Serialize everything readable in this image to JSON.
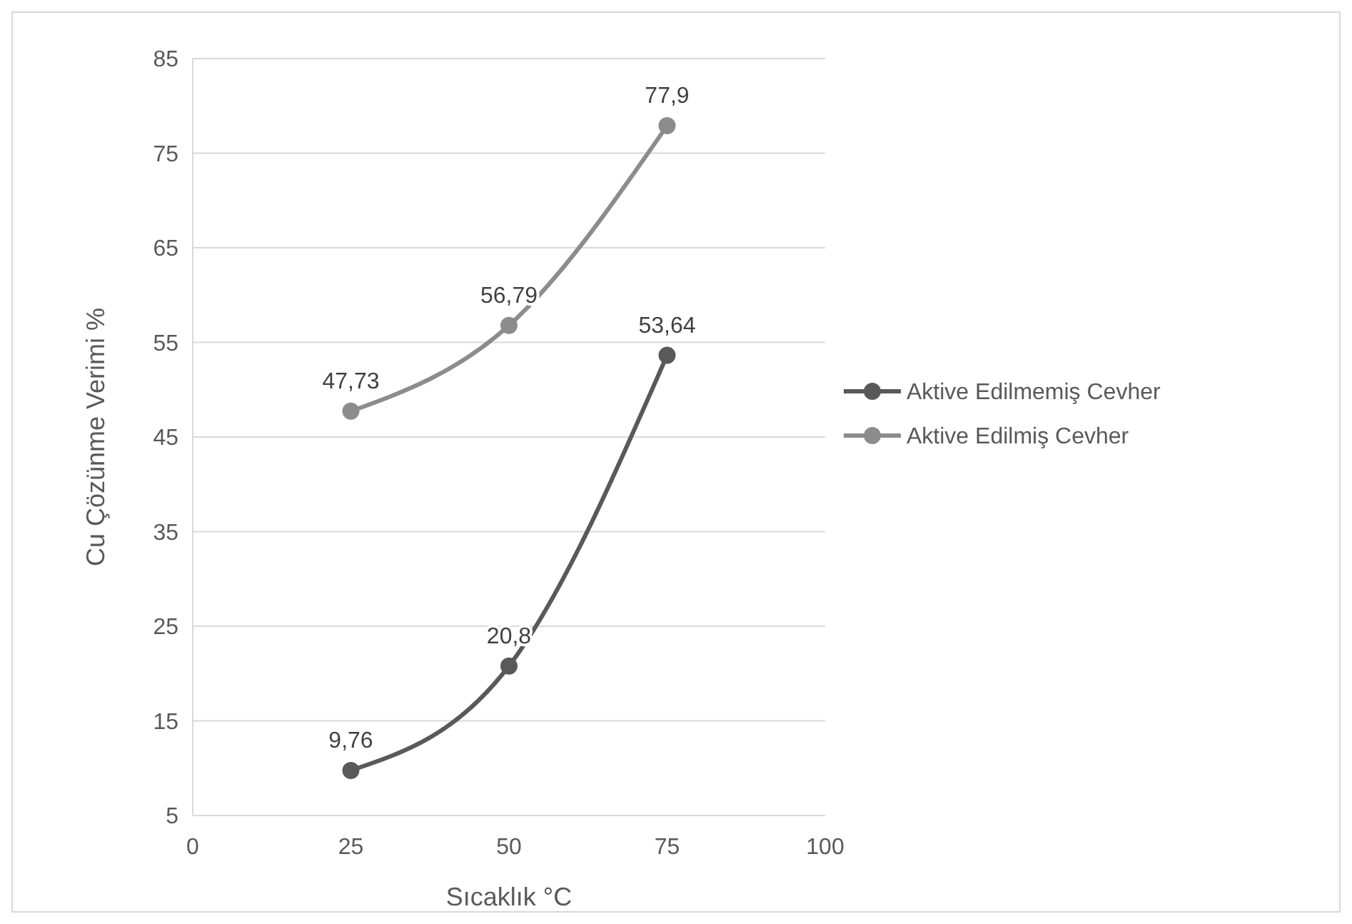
{
  "chart_data": {
    "type": "line",
    "xlabel": "Sıcaklık °C",
    "ylabel": "Cu Çözünme Verimi %",
    "x": [
      25,
      50,
      75
    ],
    "xlim": [
      0,
      100
    ],
    "xticks": [
      0,
      25,
      50,
      75,
      100
    ],
    "ylim": [
      5,
      85
    ],
    "yticks": [
      5,
      15,
      25,
      35,
      45,
      55,
      65,
      75,
      85
    ],
    "grid": "y",
    "legend": "right",
    "marker": "circle",
    "line_style": "solid",
    "series": [
      {
        "name": "Aktive Edilmemiş Cevher",
        "color": "#595959",
        "values": [
          9.76,
          20.8,
          53.64
        ],
        "value_labels": [
          "9,76",
          "20,8",
          "53,64"
        ]
      },
      {
        "name": "Aktive Edilmiş Cevher",
        "color": "#8c8c8c",
        "values": [
          47.73,
          56.79,
          77.9
        ],
        "value_labels": [
          "47,73",
          "56,79",
          "77,9"
        ]
      }
    ]
  }
}
